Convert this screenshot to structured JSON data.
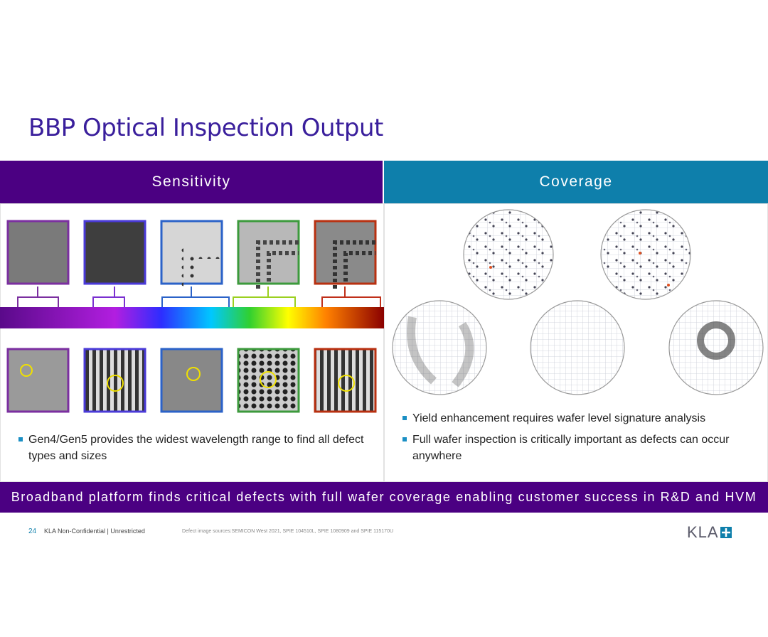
{
  "title": "BBP Optical Inspection Output",
  "panels": [
    {
      "header": "Sensitivity",
      "bullets": [
        "Gen4/Gen5 provides the widest wavelength range to find all defect types and sizes"
      ]
    },
    {
      "header": "Coverage",
      "bullets": [
        "Yield enhancement requires wafer level signature analysis",
        "Full wafer inspection is critically important as defects can occur anywhere"
      ]
    }
  ],
  "banner": "Broadband platform finds critical defects with full wafer coverage enabling customer success in R&D and HVM",
  "footer": {
    "page": "24",
    "classification": "KLA Non-Confidential | Unrestricted",
    "sources": "Defect image sources:SEMICON West 2021, SPIE 104510L, SPIE 1080909 and SPIE 115170U",
    "logo": "KLA"
  }
}
